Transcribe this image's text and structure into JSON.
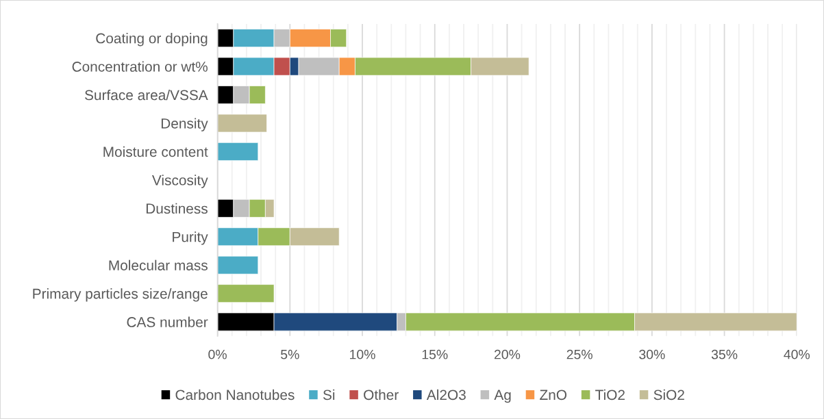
{
  "chart_data": {
    "type": "bar",
    "orientation": "horizontal",
    "stacked": true,
    "categories": [
      "Coating or doping",
      "Concentration or wt%",
      "Surface area/VSSA",
      "Density",
      "Moisture content",
      "Viscosity",
      "Dustiness",
      "Purity",
      "Molecular mass",
      "Primary particles size/range",
      "CAS number"
    ],
    "series": [
      {
        "name": "Carbon Nanotubes",
        "color": "#000000",
        "values": [
          1.1,
          1.1,
          1.1,
          null,
          null,
          null,
          1.1,
          null,
          null,
          null,
          3.9
        ]
      },
      {
        "name": "Si",
        "color": "#4bacc6",
        "values": [
          2.8,
          2.8,
          null,
          null,
          2.8,
          null,
          null,
          2.8,
          2.8,
          null,
          null
        ]
      },
      {
        "name": "Other",
        "color": "#c0504d",
        "values": [
          null,
          1.1,
          null,
          null,
          null,
          null,
          null,
          null,
          null,
          null,
          null
        ]
      },
      {
        "name": "Al2O3",
        "color": "#1f497d",
        "values": [
          null,
          0.6,
          null,
          null,
          null,
          null,
          null,
          null,
          null,
          null,
          8.5
        ]
      },
      {
        "name": "Ag",
        "color": "#bfbfbf",
        "values": [
          1.1,
          2.8,
          1.1,
          null,
          null,
          null,
          1.1,
          null,
          null,
          null,
          0.6
        ]
      },
      {
        "name": "ZnO",
        "color": "#f79646",
        "values": [
          2.8,
          1.1,
          null,
          null,
          null,
          null,
          null,
          null,
          null,
          null,
          null
        ]
      },
      {
        "name": "TiO2",
        "color": "#9bbb59",
        "values": [
          1.1,
          8.0,
          1.1,
          null,
          null,
          null,
          1.1,
          2.2,
          null,
          3.9,
          15.8
        ]
      },
      {
        "name": "SiO2",
        "color": "#c4bd97",
        "values": [
          null,
          4.0,
          null,
          3.4,
          null,
          null,
          0.6,
          3.4,
          null,
          null,
          11.2
        ]
      }
    ],
    "xlim": [
      0,
      40
    ],
    "xticks": [
      {
        "value": 0,
        "label": "0%"
      },
      {
        "value": 1,
        "label": null
      },
      {
        "value": 2,
        "label": null
      },
      {
        "value": 3,
        "label": null
      },
      {
        "value": 4,
        "label": null
      },
      {
        "value": 5,
        "label": "5%"
      },
      {
        "value": 6,
        "label": null
      },
      {
        "value": 7,
        "label": null
      },
      {
        "value": 8,
        "label": null
      },
      {
        "value": 9,
        "label": null
      },
      {
        "value": 10,
        "label": "10%"
      },
      {
        "value": 11,
        "label": null
      },
      {
        "value": 12,
        "label": null
      },
      {
        "value": 13,
        "label": null
      },
      {
        "value": 14,
        "label": null
      },
      {
        "value": 15,
        "label": "15%"
      },
      {
        "value": 16,
        "label": null
      },
      {
        "value": 17,
        "label": null
      },
      {
        "value": 18,
        "label": null
      },
      {
        "value": 19,
        "label": null
      },
      {
        "value": 20,
        "label": "20%"
      },
      {
        "value": 21,
        "label": null
      },
      {
        "value": 22,
        "label": null
      },
      {
        "value": 23,
        "label": null
      },
      {
        "value": 24,
        "label": null
      },
      {
        "value": 25,
        "label": "25%"
      },
      {
        "value": 26,
        "label": null
      },
      {
        "value": 27,
        "label": null
      },
      {
        "value": 28,
        "label": null
      },
      {
        "value": 29,
        "label": null
      },
      {
        "value": 30,
        "label": "30%"
      },
      {
        "value": 31,
        "label": null
      },
      {
        "value": 32,
        "label": null
      },
      {
        "value": 33,
        "label": null
      },
      {
        "value": 34,
        "label": null
      },
      {
        "value": 35,
        "label": "35%"
      },
      {
        "value": 36,
        "label": null
      },
      {
        "value": 37,
        "label": null
      },
      {
        "value": 38,
        "label": null
      },
      {
        "value": 39,
        "label": null
      },
      {
        "value": 40,
        "label": "40%"
      }
    ],
    "grid": "x",
    "legend": "bottom"
  }
}
